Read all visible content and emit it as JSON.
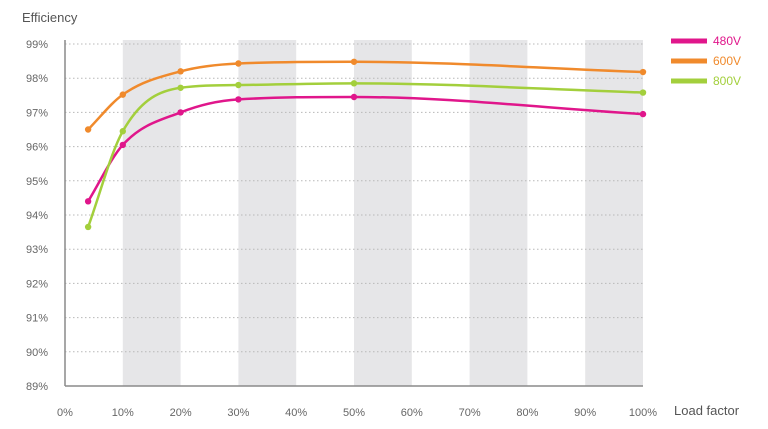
{
  "chart_data": {
    "type": "line",
    "xlabel": "Load factor",
    "ylabel": "Efficiency",
    "x_ticks": [
      "0%",
      "10%",
      "20%",
      "30%",
      "40%",
      "50%",
      "60%",
      "70%",
      "80%",
      "90%",
      "100%"
    ],
    "y_ticks": [
      "89%",
      "90%",
      "91%",
      "92%",
      "93%",
      "94%",
      "95%",
      "96%",
      "97%",
      "98%",
      "99%"
    ],
    "xlim": [
      0,
      100
    ],
    "ylim": [
      89,
      99
    ],
    "grid": "horizontal dotted, alternating vertical bands",
    "legend_position": "top-right",
    "series": [
      {
        "name": "480V",
        "color": "#e0168b",
        "x": [
          4,
          10,
          20,
          30,
          50,
          100
        ],
        "y": [
          94.4,
          96.05,
          97.0,
          97.38,
          97.45,
          96.95
        ]
      },
      {
        "name": "600V",
        "color": "#f08a2c",
        "x": [
          4,
          10,
          20,
          30,
          50,
          100
        ],
        "y": [
          96.5,
          97.52,
          98.2,
          98.43,
          98.48,
          98.18
        ]
      },
      {
        "name": "800V",
        "color": "#a3cf3c",
        "x": [
          4,
          10,
          20,
          30,
          50,
          100
        ],
        "y": [
          93.65,
          96.45,
          97.72,
          97.8,
          97.85,
          97.58
        ]
      }
    ]
  }
}
